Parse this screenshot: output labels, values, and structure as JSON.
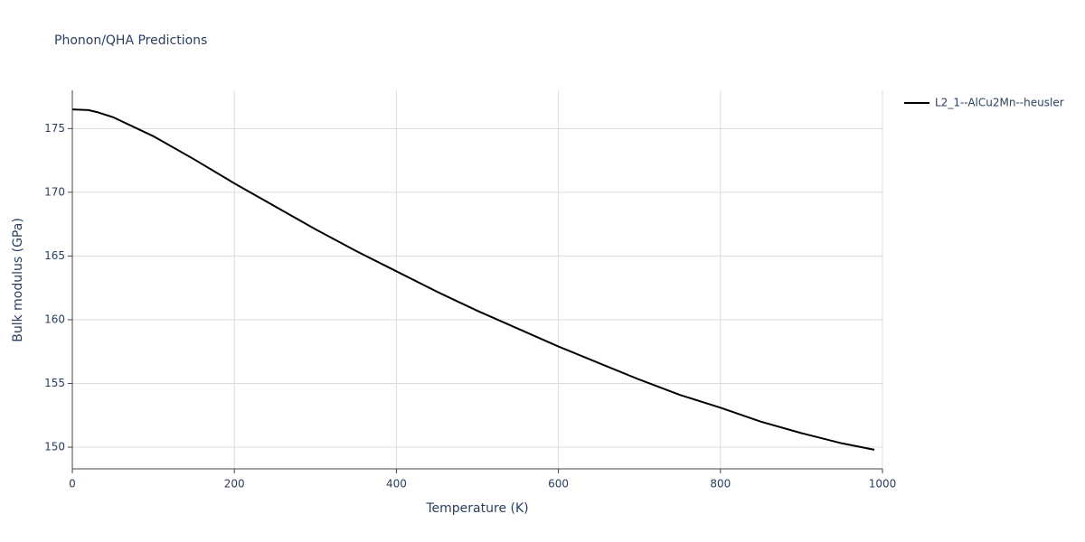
{
  "chart_data": {
    "type": "line",
    "title": "Phonon/QHA Predictions",
    "x_label": "Temperature (K)",
    "y_label": "Bulk modulus (GPa)",
    "x": [
      0,
      20,
      30,
      50,
      60,
      80,
      100,
      150,
      200,
      250,
      300,
      350,
      400,
      450,
      500,
      550,
      600,
      650,
      700,
      750,
      800,
      850,
      900,
      950,
      990
    ],
    "series": [
      {
        "name": "L2_1--AlCu2Mn--heusler",
        "color": "#000000",
        "values": [
          176.5,
          176.45,
          176.3,
          175.9,
          175.6,
          175.0,
          174.4,
          172.6,
          170.7,
          168.9,
          167.1,
          165.4,
          163.8,
          162.2,
          160.7,
          159.3,
          157.9,
          156.6,
          155.3,
          154.1,
          153.1,
          152.0,
          151.1,
          150.3,
          149.8
        ]
      }
    ],
    "xlim": [
      0,
      1000
    ],
    "xticks": [
      0,
      200,
      400,
      600,
      800,
      1000
    ],
    "ylim": [
      148.3,
      178
    ],
    "yticks": [
      150,
      155,
      160,
      165,
      170,
      175
    ],
    "grid": true,
    "legend": "right"
  }
}
